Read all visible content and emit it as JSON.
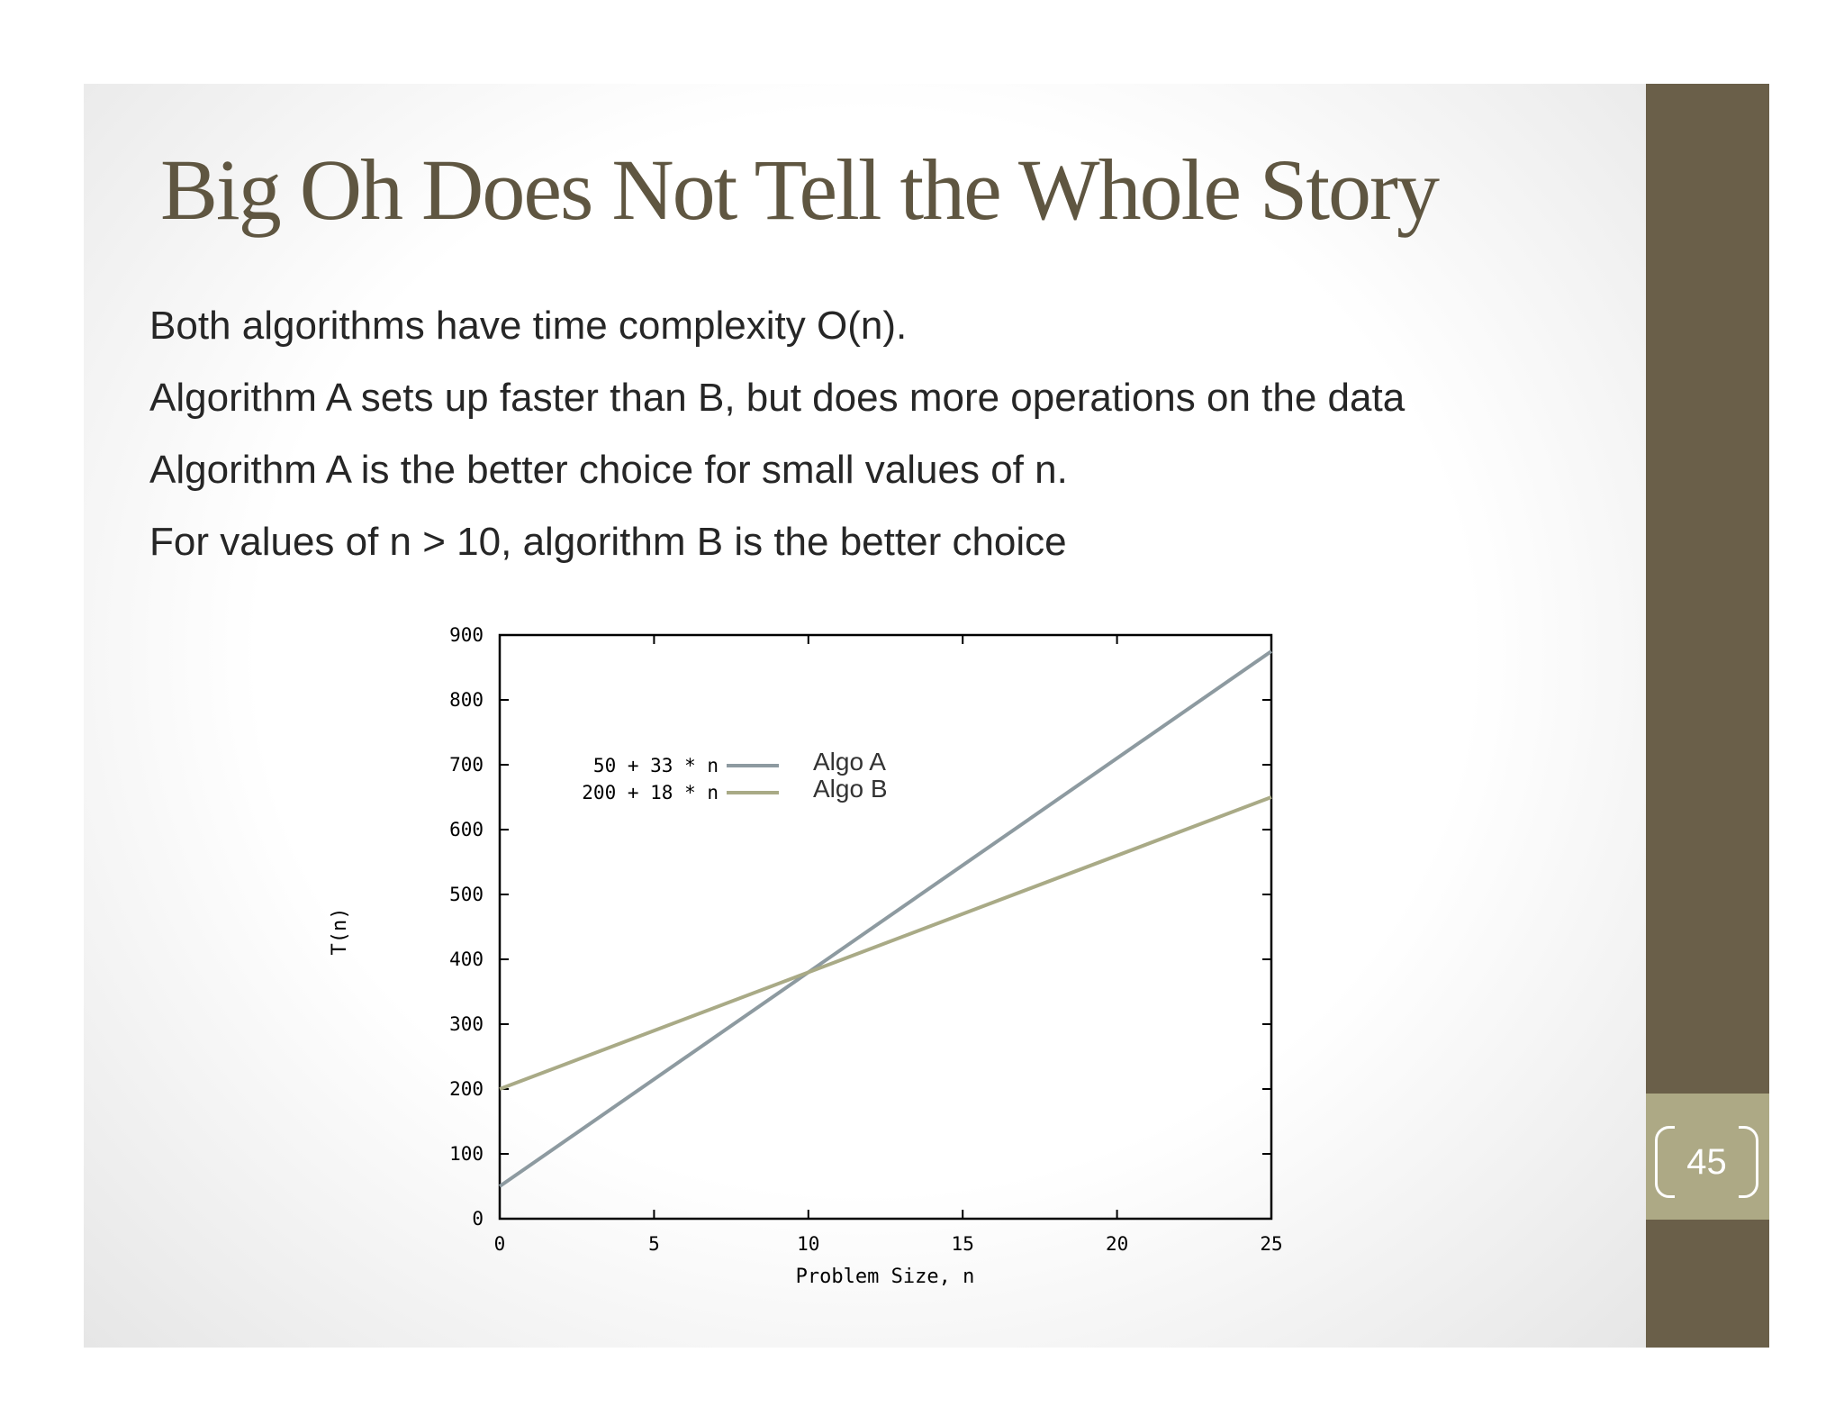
{
  "slide": {
    "title": "Big Oh Does Not Tell the Whole Story",
    "bullets": [
      "Both algorithms have time complexity O(n).",
      "Algorithm A sets up faster than B, but does more operations on the data",
      "Algorithm A is the better choice for small values of n.",
      "For values of n > 10, algorithm B is the better choice"
    ],
    "page_number": "45",
    "colors": {
      "sidebar": "#6a5f49",
      "page_box": "#ada985",
      "title": "#5f5641"
    }
  },
  "chart_data": {
    "type": "line",
    "xlabel": "Problem Size, n",
    "ylabel": "T(n)",
    "xlim": [
      0,
      25
    ],
    "ylim": [
      0,
      900
    ],
    "xticks": [
      0,
      5,
      10,
      15,
      20,
      25
    ],
    "yticks": [
      0,
      100,
      200,
      300,
      400,
      500,
      600,
      700,
      800,
      900
    ],
    "grid": false,
    "legend_position": "top-left",
    "series": [
      {
        "formula": "50 + 33 * n",
        "name": "Algo A",
        "color": "#8d9aa0",
        "x": [
          0,
          25
        ],
        "y": [
          50,
          875
        ]
      },
      {
        "formula": "200 + 18 * n",
        "name": "Algo B",
        "color": "#a9aa86",
        "x": [
          0,
          25
        ],
        "y": [
          200,
          650
        ]
      }
    ]
  }
}
